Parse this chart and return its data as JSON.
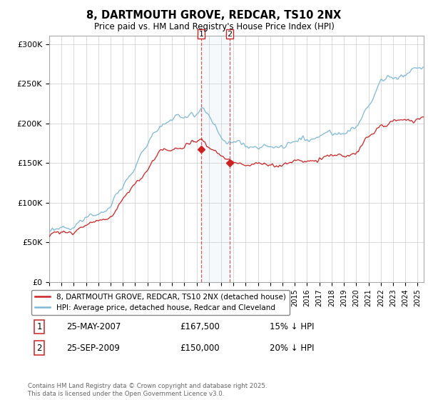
{
  "title": "8, DARTMOUTH GROVE, REDCAR, TS10 2NX",
  "subtitle": "Price paid vs. HM Land Registry's House Price Index (HPI)",
  "legend_line1": "8, DARTMOUTH GROVE, REDCAR, TS10 2NX (detached house)",
  "legend_line2": "HPI: Average price, detached house, Redcar and Cleveland",
  "hpi_color": "#7db8d8",
  "price_color": "#cc2222",
  "background_color": "#ffffff",
  "grid_color": "#cccccc",
  "transaction1_date": "25-MAY-2007",
  "transaction1_price": "£167,500",
  "transaction1_note": "15% ↓ HPI",
  "transaction2_date": "25-SEP-2009",
  "transaction2_price": "£150,000",
  "transaction2_note": "20% ↓ HPI",
  "footer": "Contains HM Land Registry data © Crown copyright and database right 2025.\nThis data is licensed under the Open Government Licence v3.0.",
  "ylim": [
    0,
    310000
  ],
  "yticks": [
    0,
    50000,
    100000,
    150000,
    200000,
    250000,
    300000
  ],
  "ytick_labels": [
    "£0",
    "£50K",
    "£100K",
    "£150K",
    "£200K",
    "£250K",
    "£300K"
  ],
  "xstart_year": 1995,
  "xend_year": 2025,
  "t1_year_float": 2007.375,
  "t1_price": 167500,
  "t2_year_float": 2009.708,
  "t2_price": 150000
}
